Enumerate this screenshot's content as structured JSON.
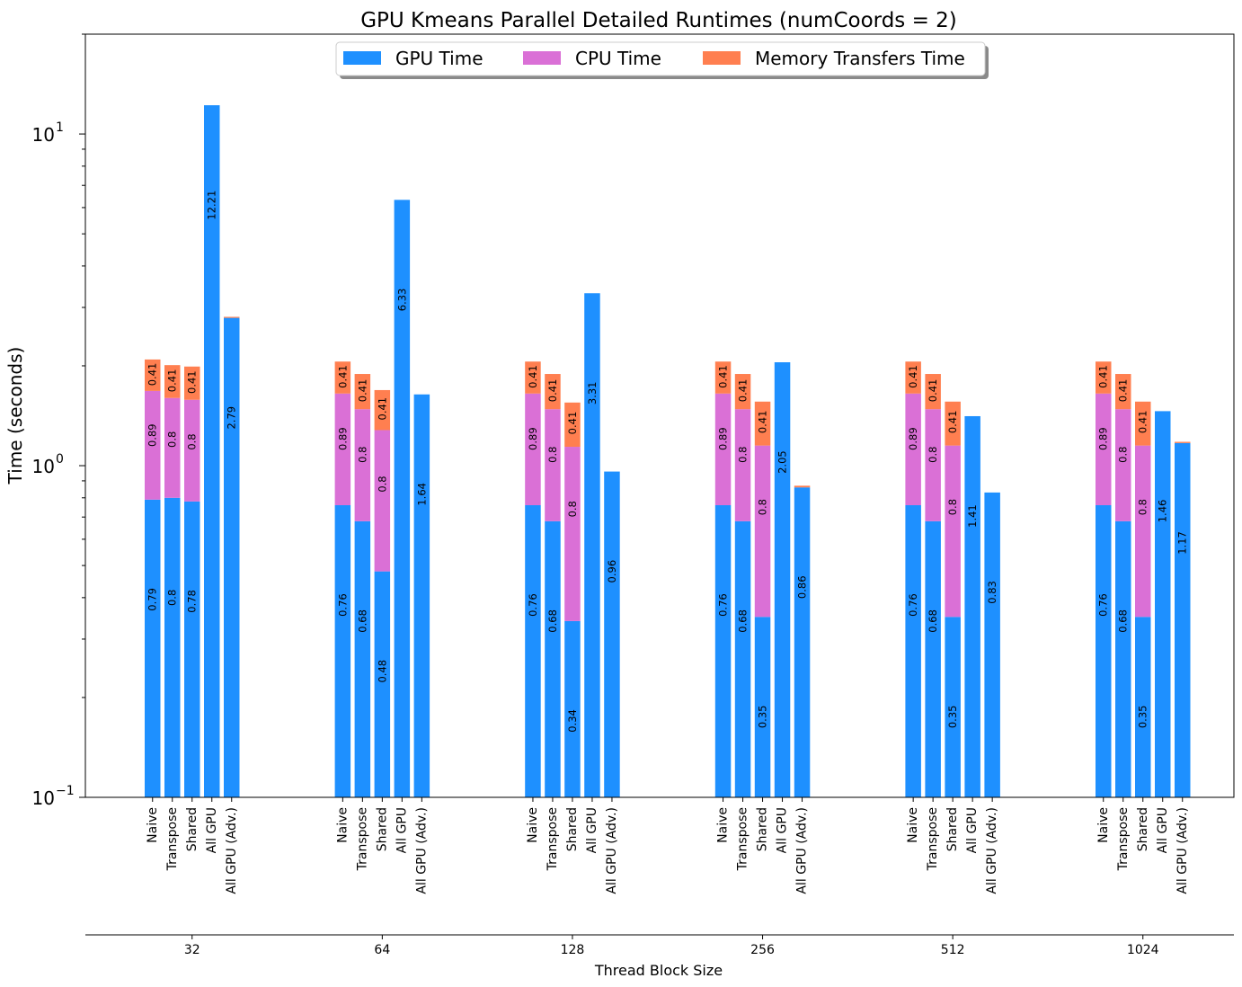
{
  "chart_data": {
    "type": "bar",
    "stacked": true,
    "title": "GPU Kmeans Parallel Detailed Runtimes (numCoords = 2)",
    "ylabel": "Time (seconds)",
    "xlabel": "Thread Block Size",
    "yscale": "log",
    "ylim": [
      0.1,
      20
    ],
    "y_tick_labels": [
      {
        "base": "10",
        "exp": "−1",
        "value": 0.1
      },
      {
        "base": "10",
        "exp": "0",
        "value": 1
      },
      {
        "base": "10",
        "exp": "1",
        "value": 10
      }
    ],
    "groups": [
      "32",
      "64",
      "128",
      "256",
      "512",
      "1024"
    ],
    "implementations": [
      "Naive",
      "Transpose",
      "Shared",
      "All GPU",
      "All GPU (Adv.)"
    ],
    "legend": {
      "position": "top-center",
      "entries": [
        "GPU Time",
        "CPU Time",
        "Memory Transfers Time"
      ]
    },
    "colors": {
      "GPU Time": "#1e90ff",
      "CPU Time": "#da70d6",
      "Memory Transfers Time": "#ff7f50"
    },
    "series": [
      {
        "name": "GPU Time",
        "values": [
          [
            0.79,
            0.8,
            0.78,
            12.21,
            2.79
          ],
          [
            0.76,
            0.68,
            0.48,
            6.33,
            1.64
          ],
          [
            0.76,
            0.68,
            0.34,
            3.31,
            0.96
          ],
          [
            0.76,
            0.68,
            0.35,
            2.05,
            0.86
          ],
          [
            0.76,
            0.68,
            0.35,
            1.41,
            0.83
          ],
          [
            0.76,
            0.68,
            0.35,
            1.46,
            1.17
          ]
        ]
      },
      {
        "name": "CPU Time",
        "values": [
          [
            0.89,
            0.8,
            0.8,
            0,
            0
          ],
          [
            0.89,
            0.8,
            0.8,
            0,
            0
          ],
          [
            0.89,
            0.8,
            0.8,
            0,
            0
          ],
          [
            0.89,
            0.8,
            0.8,
            0,
            0
          ],
          [
            0.89,
            0.8,
            0.8,
            0,
            0
          ],
          [
            0.89,
            0.8,
            0.8,
            0,
            0
          ]
        ]
      },
      {
        "name": "Memory Transfers Time",
        "values": [
          [
            0.41,
            0.41,
            0.41,
            0,
            0.02
          ],
          [
            0.41,
            0.41,
            0.41,
            0,
            0
          ],
          [
            0.41,
            0.41,
            0.41,
            0,
            0
          ],
          [
            0.41,
            0.41,
            0.41,
            0,
            0.01
          ],
          [
            0.41,
            0.41,
            0.41,
            0,
            0
          ],
          [
            0.41,
            0.41,
            0.41,
            0,
            0.01
          ]
        ]
      }
    ],
    "data_labels": [
      [
        [
          "0.79",
          "0.89",
          "0.41"
        ],
        [
          "0.8",
          "0.8",
          "0.41"
        ],
        [
          "0.78",
          "0.8",
          "0.41"
        ],
        [
          "12.21"
        ],
        [
          "2.79"
        ]
      ],
      [
        [
          "0.76",
          "0.89",
          "0.41"
        ],
        [
          "0.68",
          "0.8",
          "0.41"
        ],
        [
          "0.48",
          "0.8",
          "0.41"
        ],
        [
          "6.33"
        ],
        [
          "1.64"
        ]
      ],
      [
        [
          "0.76",
          "0.89",
          "0.41"
        ],
        [
          "0.68",
          "0.8",
          "0.41"
        ],
        [
          "0.34",
          "0.8",
          "0.41"
        ],
        [
          "3.31"
        ],
        [
          "0.96"
        ]
      ],
      [
        [
          "0.76",
          "0.89",
          "0.41"
        ],
        [
          "0.68",
          "0.8",
          "0.41"
        ],
        [
          "0.35",
          "0.8",
          "0.41"
        ],
        [
          "2.05"
        ],
        [
          "0.86"
        ]
      ],
      [
        [
          "0.76",
          "0.89",
          "0.41"
        ],
        [
          "0.68",
          "0.8",
          "0.41"
        ],
        [
          "0.35",
          "0.8",
          "0.41"
        ],
        [
          "1.41"
        ],
        [
          "0.83"
        ]
      ],
      [
        [
          "0.76",
          "0.89",
          "0.41"
        ],
        [
          "0.68",
          "0.8",
          "0.41"
        ],
        [
          "0.35",
          "0.8",
          "0.41"
        ],
        [
          "1.46"
        ],
        [
          "1.17"
        ]
      ]
    ]
  }
}
